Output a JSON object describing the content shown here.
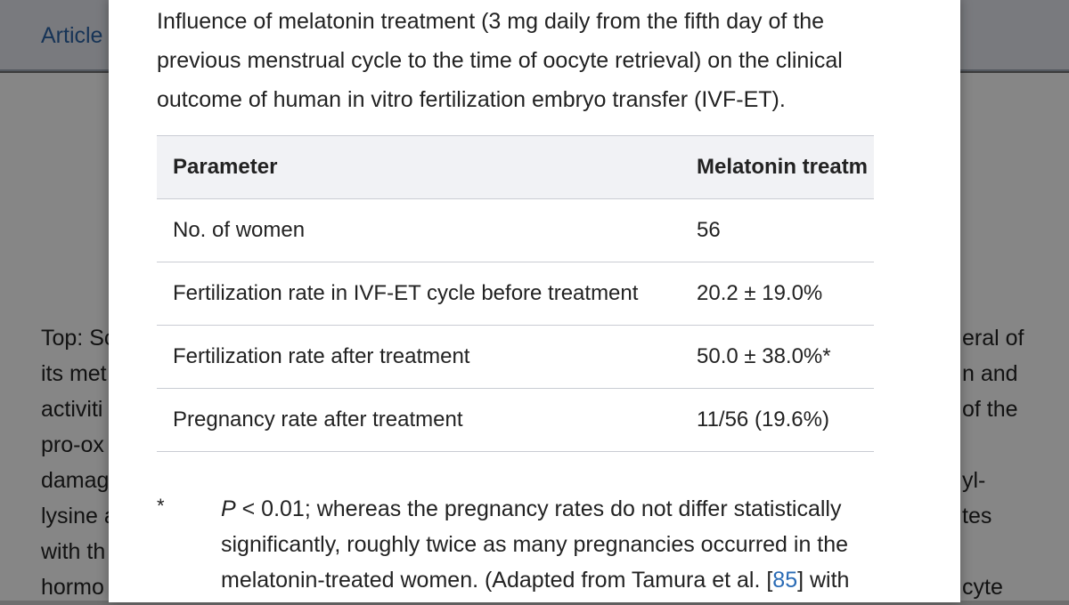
{
  "background": {
    "tab_label": "Article",
    "left_lines": [
      "Top: Sc",
      "its met",
      "activiti",
      "pro-ox",
      "damag",
      "lysine a",
      "with th",
      "hormo"
    ],
    "right_lines": [
      "eral of",
      "n and",
      "of the",
      "",
      "yl-",
      "tes",
      "",
      "cyte"
    ]
  },
  "modal": {
    "caption": "Influence of melatonin treatment (3 mg daily from the fifth day of the previous menstrual cycle to the time of oocyte retrieval) on the clinical outcome of human in vitro fertilization embryo transfer (IVF-ET).",
    "table": {
      "headers": [
        "Parameter",
        "Melatonin treatm"
      ],
      "rows": [
        [
          "No. of women",
          "56"
        ],
        [
          "Fertilization rate in IVF-ET cycle before treatment",
          "20.2 ± 19.0%"
        ],
        [
          "Fertilization rate after treatment",
          "50.0 ± 38.0%*"
        ],
        [
          "Pregnancy rate after treatment",
          "11/56 (19.6%)"
        ]
      ]
    },
    "footnote": {
      "mark": "*",
      "p_label": "P",
      "text_before_link": " < 0.01; whereas the pregnancy rates do not differ statistically significantly, roughly twice as many pregnancies occurred in the melatonin-treated women. (Adapted from Tamura et al. [",
      "ref": "85",
      "text_after_link": "] with"
    }
  }
}
